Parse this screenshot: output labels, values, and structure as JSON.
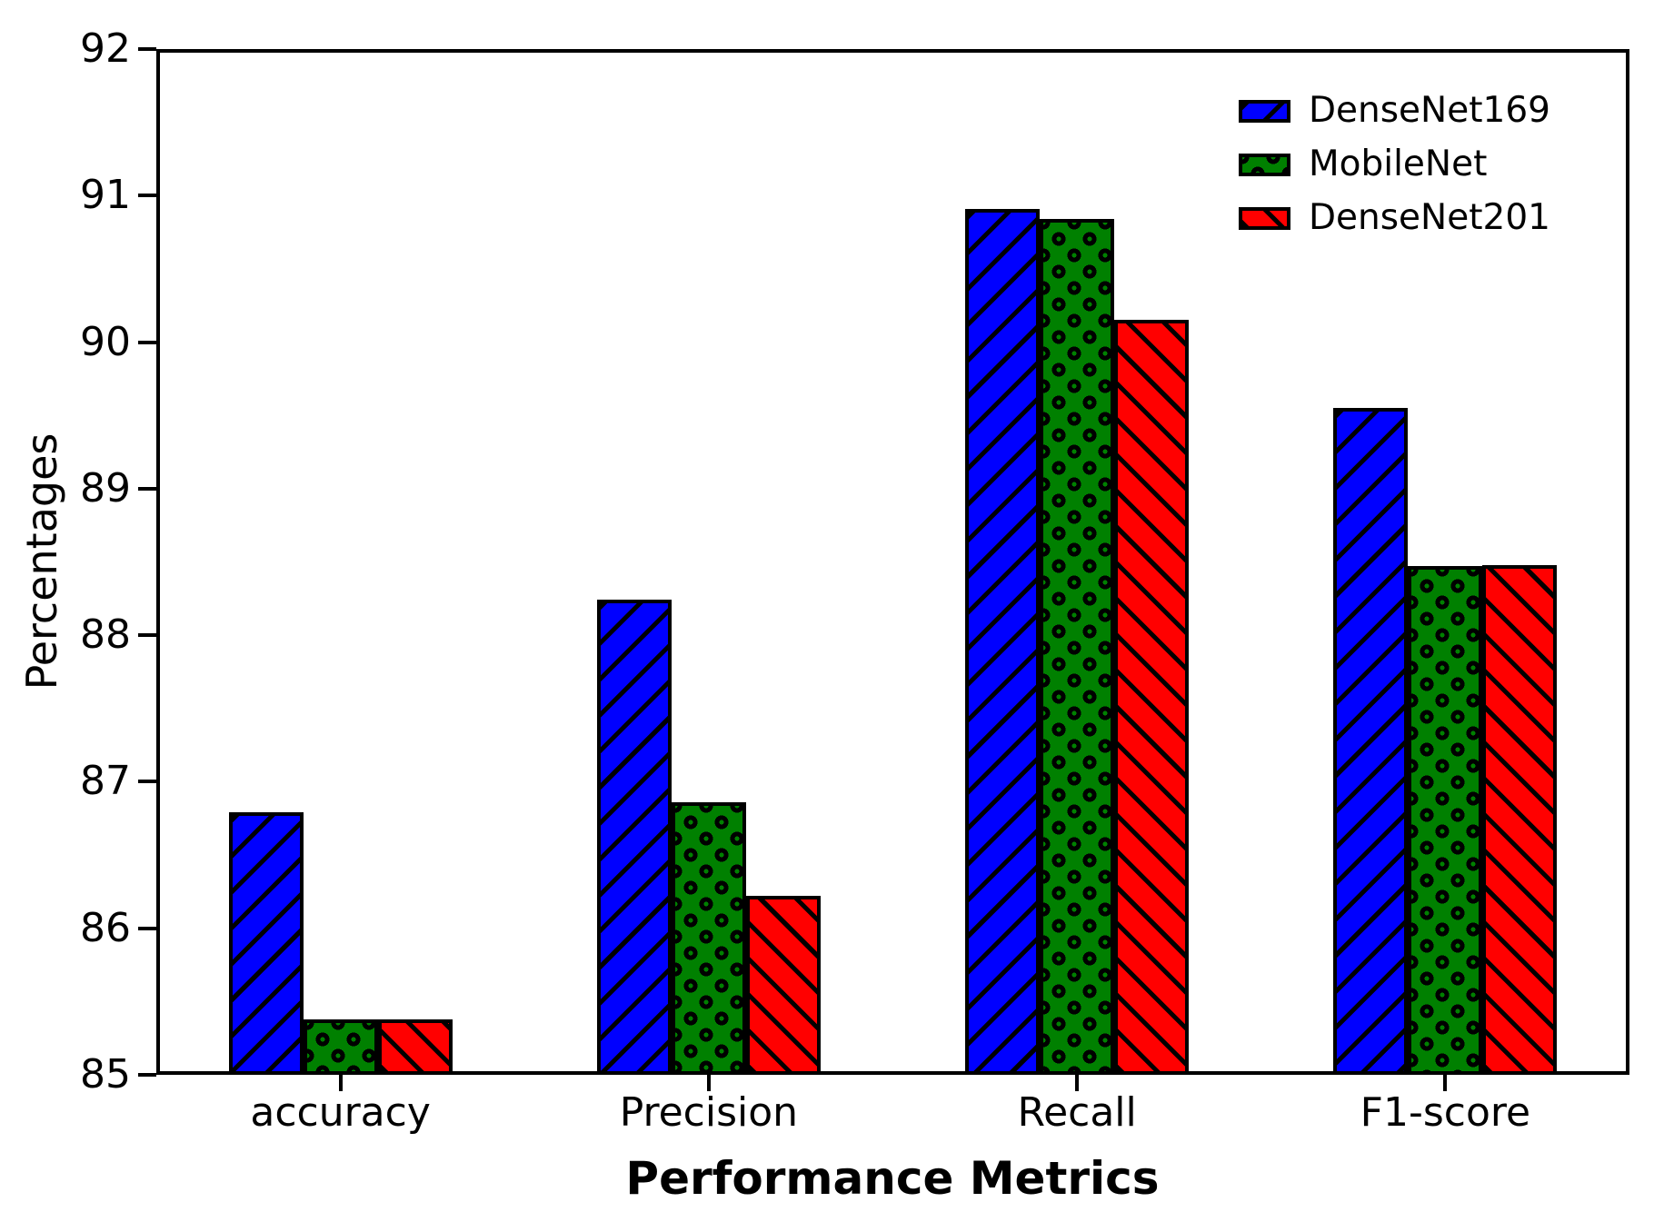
{
  "chart_data": {
    "type": "bar",
    "title": "",
    "xlabel": "Performance Metrics",
    "ylabel": "Percentages",
    "categories": [
      "accuracy",
      "Precision",
      "Recall",
      "F1-score"
    ],
    "series": [
      {
        "name": "DenseNet169",
        "color": "#0000ff",
        "hatch": "/",
        "values": [
          86.79,
          88.24,
          90.91,
          89.55
        ]
      },
      {
        "name": "MobileNet",
        "color": "#008000",
        "hatch": "o",
        "values": [
          85.38,
          86.86,
          90.84,
          88.47
        ]
      },
      {
        "name": "DenseNet201",
        "color": "#ff0000",
        "hatch": "\\",
        "values": [
          85.38,
          86.22,
          90.15,
          88.48
        ]
      }
    ],
    "ylim": [
      85,
      92
    ],
    "yticks": [
      85,
      86,
      87,
      88,
      89,
      90,
      91,
      92
    ],
    "legend_position": "upper right",
    "grid": false,
    "axis_color": "#000000",
    "background_color": "#ffffff"
  }
}
